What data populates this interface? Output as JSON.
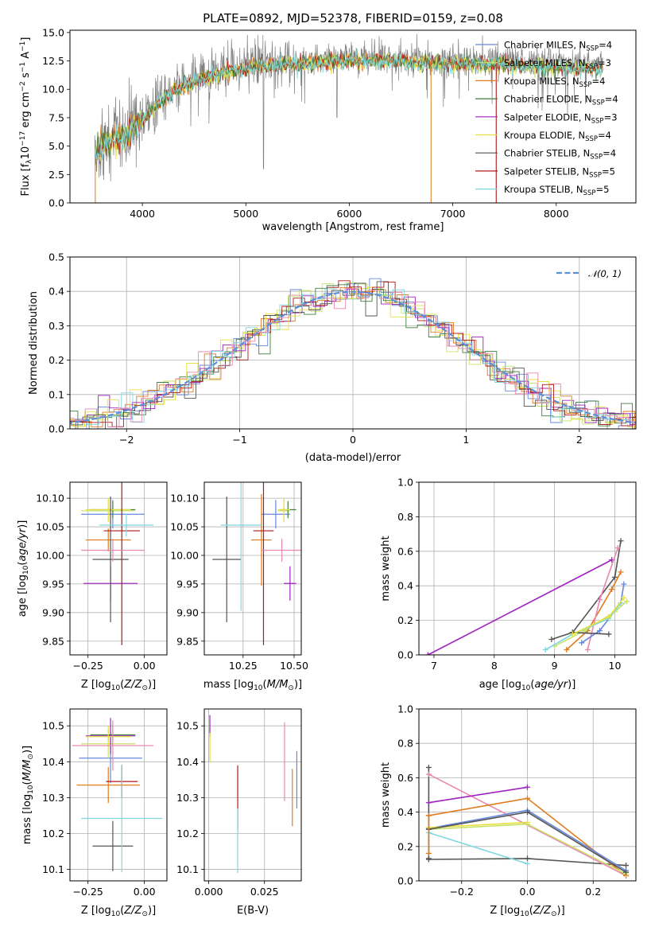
{
  "colors": {
    "Chabrier MILES": "#6688dd",
    "Salpeter MILES": "#c9e36a",
    "Kroupa MILES": "#e07b1e",
    "Chabrier ELODIE": "#3f7f3f",
    "Salpeter ELODIE": "#a020c0",
    "Kroupa ELODIE": "#e6e040",
    "Chabrier STELIB": "#555555",
    "Salpeter STELIB": "#b01818",
    "Kroupa STELIB": "#7fd8e0",
    "data": "#808080",
    "pink": "#e888b0",
    "normal": "#5b8fd9"
  },
  "chart_data": [
    {
      "id": "spectrum",
      "type": "line",
      "title": "PLATE=0892, MJD=52378, FIBERID=0159, z=0.08",
      "xlabel": "wavelength [Angstrom, rest frame]",
      "ylabel": "Flux [fλ10⁻¹⁷ erg cm⁻² s⁻¹ A⁻¹]",
      "xlim": [
        3300,
        8770
      ],
      "ylim": [
        0,
        15.2
      ],
      "xticks": [
        4000,
        5000,
        6000,
        7000,
        8000
      ],
      "yticks": [
        0.0,
        2.5,
        5.0,
        7.5,
        10.0,
        12.5,
        15.0
      ],
      "grid": false,
      "legend_position": "right",
      "legend": [
        {
          "name": "Chabrier MILES, N",
          "sub": "SSP",
          "suffix": "=4"
        },
        {
          "name": "Salpeter MILES, N",
          "sub": "SSP",
          "suffix": "=3"
        },
        {
          "name": "Kroupa MILES, N",
          "sub": "SSP",
          "suffix": "=4"
        },
        {
          "name": "Chabrier ELODIE, N",
          "sub": "SSP",
          "suffix": "=4"
        },
        {
          "name": "Salpeter ELODIE, N",
          "sub": "SSP",
          "suffix": "=3"
        },
        {
          "name": "Kroupa ELODIE, N",
          "sub": "SSP",
          "suffix": "=4"
        },
        {
          "name": "Chabrier STELIB, N",
          "sub": "SSP",
          "suffix": "=4"
        },
        {
          "name": "Salpeter STELIB, N",
          "sub": "SSP",
          "suffix": "=5"
        },
        {
          "name": "Kroupa STELIB, N",
          "sub": "SSP",
          "suffix": "=5"
        }
      ],
      "continuum": [
        [
          3540,
          4.5
        ],
        [
          3650,
          5.5
        ],
        [
          3800,
          5.8
        ],
        [
          3900,
          6.5
        ],
        [
          4000,
          7.5
        ],
        [
          4200,
          9.5
        ],
        [
          4400,
          10.5
        ],
        [
          4600,
          11.3
        ],
        [
          4800,
          11.8
        ],
        [
          5000,
          12.2
        ],
        [
          5200,
          12.4
        ],
        [
          5500,
          12.6
        ],
        [
          6000,
          12.9
        ],
        [
          6300,
          12.9
        ],
        [
          6600,
          12.8
        ],
        [
          7000,
          12.6
        ],
        [
          7400,
          12.6
        ],
        [
          7800,
          12.4
        ],
        [
          8200,
          12.2
        ],
        [
          8450,
          12.2
        ]
      ]
    },
    {
      "id": "residuals",
      "type": "histogram",
      "xlabel": "(data-model)/error",
      "ylabel": "Normed distribution",
      "xlim": [
        -2.5,
        2.5
      ],
      "ylim": [
        0,
        0.5
      ],
      "xticks": [
        -2,
        -1,
        0,
        1,
        2
      ],
      "yticks": [
        0.0,
        0.1,
        0.2,
        0.3,
        0.4,
        0.5
      ],
      "grid": true,
      "legend_position": "top-right",
      "reference": "𝒩(0, 1)"
    },
    {
      "id": "age_vs_Z",
      "type": "errorbar",
      "xlabel": "Z [log₁₀(Z/Z⊙)]",
      "ylabel": "age  [log₁₀(age/yr)]",
      "xlim": [
        -0.33,
        0.1
      ],
      "ylim": [
        9.826,
        10.128
      ],
      "xticks": [
        -0.25,
        0.0
      ],
      "yticks": [
        9.85,
        9.9,
        9.95,
        10.0,
        10.05,
        10.1
      ],
      "points": [
        {
          "model": "Chabrier MILES",
          "x": -0.14,
          "y": 10.072,
          "xerr": 0.14,
          "yerr": 0.025
        },
        {
          "model": "Salpeter MILES",
          "x": -0.16,
          "y": 10.078,
          "xerr": 0.12,
          "yerr": 0.02
        },
        {
          "model": "Kroupa MILES",
          "x": -0.16,
          "y": 10.027,
          "xerr": 0.1,
          "yerr": 0.02
        },
        {
          "model": "Chabrier ELODIE",
          "x": -0.14,
          "y": 10.08,
          "xerr": 0.1,
          "yerr": 0.015
        },
        {
          "model": "Salpeter ELODIE",
          "x": -0.15,
          "y": 9.951,
          "xerr": 0.12,
          "yerr": 0.03
        },
        {
          "model": "Kroupa ELODIE",
          "x": -0.16,
          "y": 10.08,
          "xerr": 0.1,
          "yerr": 0.02
        },
        {
          "model": "Chabrier STELIB",
          "x": -0.15,
          "y": 9.993,
          "xerr": 0.08,
          "yerr": 0.11
        },
        {
          "model": "Salpeter STELIB",
          "x": -0.1,
          "y": 10.043,
          "xerr": 0.08,
          "yerr": 0.2
        },
        {
          "model": "Kroupa STELIB",
          "x": -0.08,
          "y": 10.053,
          "xerr": 0.12,
          "yerr": 0.02
        },
        {
          "model": "pink",
          "x": -0.14,
          "y": 10.009,
          "xerr": 0.14,
          "yerr": 0.02
        }
      ]
    },
    {
      "id": "age_vs_mass",
      "type": "errorbar",
      "xlabel": "mass [log₁₀(M/M⊙)]",
      "ylabel": "",
      "xlim": [
        10.06,
        10.535
      ],
      "ylim": [
        9.826,
        10.128
      ],
      "xticks": [
        10.25,
        10.5
      ],
      "yticks": [
        9.85,
        9.9,
        9.95,
        10.0,
        10.05,
        10.1
      ],
      "points": [
        {
          "model": "Chabrier MILES",
          "x": 10.41,
          "y": 10.072,
          "xerr": 0.07,
          "yerr": 0.025
        },
        {
          "model": "Salpeter MILES",
          "x": 10.45,
          "y": 10.078,
          "xerr": 0.03,
          "yerr": 0.02
        },
        {
          "model": "Kroupa MILES",
          "x": 10.34,
          "y": 10.027,
          "xerr": 0.05,
          "yerr": 0.08
        },
        {
          "model": "Chabrier ELODIE",
          "x": 10.47,
          "y": 10.08,
          "xerr": 0.04,
          "yerr": 0.015
        },
        {
          "model": "Salpeter ELODIE",
          "x": 10.48,
          "y": 9.951,
          "xerr": 0.03,
          "yerr": 0.03
        },
        {
          "model": "Kroupa ELODIE",
          "x": 10.45,
          "y": 10.08,
          "xerr": 0.03,
          "yerr": 0.02
        },
        {
          "model": "Chabrier STELIB",
          "x": 10.17,
          "y": 9.993,
          "xerr": 0.07,
          "yerr": 0.11
        },
        {
          "model": "Salpeter STELIB",
          "x": 10.35,
          "y": 10.043,
          "xerr": 0.05,
          "yerr": 0.2
        },
        {
          "model": "Kroupa STELIB",
          "x": 10.24,
          "y": 10.053,
          "xerr": 0.1,
          "yerr": 0.15
        },
        {
          "model": "pink",
          "x": 10.44,
          "y": 10.009,
          "xerr": 0.1,
          "yerr": 0.02
        }
      ]
    },
    {
      "id": "mass_weight_vs_age",
      "type": "line",
      "xlabel": "age  [log₁₀(age/yr)]",
      "ylabel": "mass weight",
      "xlim": [
        6.75,
        10.35
      ],
      "ylim": [
        0,
        1
      ],
      "xticks": [
        7,
        8,
        9,
        10
      ],
      "yticks": [
        0.0,
        0.2,
        0.4,
        0.6,
        0.8,
        1.0
      ],
      "series": [
        {
          "model": "Salpeter ELODIE",
          "x": [
            6.9,
            9.95
          ],
          "y": [
            0.0,
            0.55
          ]
        },
        {
          "model": "Chabrier STELIB",
          "x": [
            8.95,
            9.3,
            10.0,
            10.1
          ],
          "y": [
            0.09,
            0.13,
            0.45,
            0.66
          ]
        },
        {
          "model": "Kroupa MILES",
          "x": [
            9.2,
            9.55,
            9.95,
            10.1
          ],
          "y": [
            0.03,
            0.14,
            0.38,
            0.48
          ]
        },
        {
          "model": "pink",
          "x": [
            9.55,
            9.75,
            10.05
          ],
          "y": [
            0.03,
            0.32,
            0.62
          ]
        },
        {
          "model": "Chabrier MILES",
          "x": [
            9.45,
            9.75,
            10.1,
            10.15
          ],
          "y": [
            0.07,
            0.14,
            0.3,
            0.41
          ]
        },
        {
          "model": "Salpeter MILES",
          "x": [
            9.0,
            9.5,
            10.0,
            10.2
          ],
          "y": [
            0.05,
            0.14,
            0.25,
            0.31
          ]
        },
        {
          "model": "Kroupa STELIB",
          "x": [
            8.85,
            9.3,
            9.9,
            10.1
          ],
          "y": [
            0.03,
            0.12,
            0.21,
            0.3
          ]
        },
        {
          "model": "Chabrier STELIB",
          "x": [
            9.3,
            9.9
          ],
          "y": [
            0.13,
            0.12
          ]
        },
        {
          "model": "Kroupa ELODIE",
          "x": [
            9.3,
            9.9,
            10.15
          ],
          "y": [
            0.12,
            0.22,
            0.33
          ]
        }
      ]
    },
    {
      "id": "mass_vs_Z",
      "type": "errorbar",
      "xlabel": "Z [log₁₀(Z/Z⊙)]",
      "ylabel": "mass [log₁₀(M/M⊙)]",
      "xlim": [
        -0.33,
        0.1
      ],
      "ylim": [
        10.068,
        10.547
      ],
      "xticks": [
        -0.25,
        0.0
      ],
      "yticks": [
        10.1,
        10.2,
        10.3,
        10.4,
        10.5
      ],
      "points": [
        {
          "model": "Chabrier MILES",
          "x": -0.15,
          "y": 10.41,
          "xerr": 0.14,
          "yerr": 0.07
        },
        {
          "model": "Salpeter MILES",
          "x": -0.16,
          "y": 10.45,
          "xerr": 0.12,
          "yerr": 0.04
        },
        {
          "model": "Kroupa MILES",
          "x": -0.16,
          "y": 10.335,
          "xerr": 0.14,
          "yerr": 0.05
        },
        {
          "model": "Chabrier ELODIE",
          "x": -0.14,
          "y": 10.475,
          "xerr": 0.1,
          "yerr": 0.03
        },
        {
          "model": "Salpeter ELODIE",
          "x": -0.15,
          "y": 10.472,
          "xerr": 0.11,
          "yerr": 0.05
        },
        {
          "model": "Kroupa ELODIE",
          "x": -0.16,
          "y": 10.47,
          "xerr": 0.1,
          "yerr": 0.03
        },
        {
          "model": "Chabrier STELIB",
          "x": -0.14,
          "y": 10.165,
          "xerr": 0.09,
          "yerr": 0.07
        },
        {
          "model": "Salpeter STELIB",
          "x": -0.1,
          "y": 10.345,
          "xerr": 0.07,
          "yerr": 0.045
        },
        {
          "model": "Kroupa STELIB",
          "x": -0.1,
          "y": 10.242,
          "xerr": 0.18,
          "yerr": 0.15
        },
        {
          "model": "pink",
          "x": -0.14,
          "y": 10.445,
          "xerr": 0.18,
          "yerr": 0.07
        }
      ]
    },
    {
      "id": "mass_vs_EBV",
      "type": "errorbar",
      "xlabel": "E(B-V)",
      "ylabel": "",
      "xlim": [
        -0.002,
        0.0415
      ],
      "ylim": [
        10.068,
        10.547
      ],
      "xticks": [
        0.0,
        0.025
      ],
      "yticks": [
        10.1,
        10.2,
        10.3,
        10.4,
        10.5
      ],
      "points": [
        {
          "model": "Chabrier MILES",
          "x": 0.0395,
          "y": 10.35,
          "xerr": 0,
          "yerr": 0.08
        },
        {
          "model": "Salpeter MILES",
          "x": 0.0005,
          "y": 10.45,
          "xerr": 0,
          "yerr": 0.05
        },
        {
          "model": "Kroupa MILES",
          "x": 0.0375,
          "y": 10.3,
          "xerr": 0,
          "yerr": 0.08
        },
        {
          "model": "Salpeter ELODIE",
          "x": 0.0005,
          "y": 10.5,
          "xerr": 0,
          "yerr": 0.03
        },
        {
          "model": "Kroupa ELODIE",
          "x": 0.0005,
          "y": 10.44,
          "xerr": 0,
          "yerr": 0.04
        },
        {
          "model": "Salpeter STELIB",
          "x": 0.013,
          "y": 10.3,
          "xerr": 0,
          "yerr": 0.09
        },
        {
          "model": "Kroupa STELIB",
          "x": 0.013,
          "y": 10.18,
          "xerr": 0,
          "yerr": 0.09
        },
        {
          "model": "pink",
          "x": 0.034,
          "y": 10.4,
          "xerr": 0,
          "yerr": 0.11
        }
      ]
    },
    {
      "id": "mass_weight_vs_Z",
      "type": "line",
      "xlabel": "Z [log₁₀(Z/Z⊙)]",
      "ylabel": "mass weight",
      "xlim": [
        -0.33,
        0.33
      ],
      "ylim": [
        0,
        1
      ],
      "xticks": [
        -0.2,
        0.0,
        0.2
      ],
      "yticks": [
        0.0,
        0.2,
        0.4,
        0.6,
        0.8,
        1.0
      ],
      "series": [
        {
          "model": "Chabrier STELIB",
          "x": [
            -0.3,
            -0.3
          ],
          "y": [
            0.66,
            0.13
          ]
        },
        {
          "model": "Chabrier STELIB",
          "x": [
            -0.3,
            0.0,
            0.3
          ],
          "y": [
            0.125,
            0.13,
            0.09
          ]
        },
        {
          "model": "pink",
          "x": [
            -0.3,
            0.3
          ],
          "y": [
            0.62,
            0.03
          ]
        },
        {
          "model": "Salpeter ELODIE",
          "x": [
            -0.3,
            0.0
          ],
          "y": [
            0.455,
            0.545
          ]
        },
        {
          "model": "Kroupa MILES",
          "x": [
            -0.3,
            0.0,
            0.3
          ],
          "y": [
            0.38,
            0.48,
            0.03
          ]
        },
        {
          "model": "Chabrier MILES",
          "x": [
            -0.3,
            0.0,
            0.3
          ],
          "y": [
            0.305,
            0.41,
            0.06
          ]
        },
        {
          "model": "Salpeter MILES",
          "x": [
            -0.3,
            0.0,
            0.3
          ],
          "y": [
            0.3,
            0.33,
            0.04
          ]
        },
        {
          "model": "Kroupa ELODIE",
          "x": [
            -0.3,
            0.0
          ],
          "y": [
            0.31,
            0.34
          ]
        },
        {
          "model": "Chabrier STELIB",
          "x": [
            -0.3,
            0.0,
            0.3
          ],
          "y": [
            0.3,
            0.4,
            0.05
          ]
        },
        {
          "model": "Kroupa STELIB",
          "x": [
            -0.3,
            0.0
          ],
          "y": [
            0.28,
            0.1
          ]
        },
        {
          "model": "Kroupa MILES",
          "x": [
            -0.3,
            -0.3
          ],
          "y": [
            0.38,
            0.16
          ]
        }
      ]
    }
  ]
}
